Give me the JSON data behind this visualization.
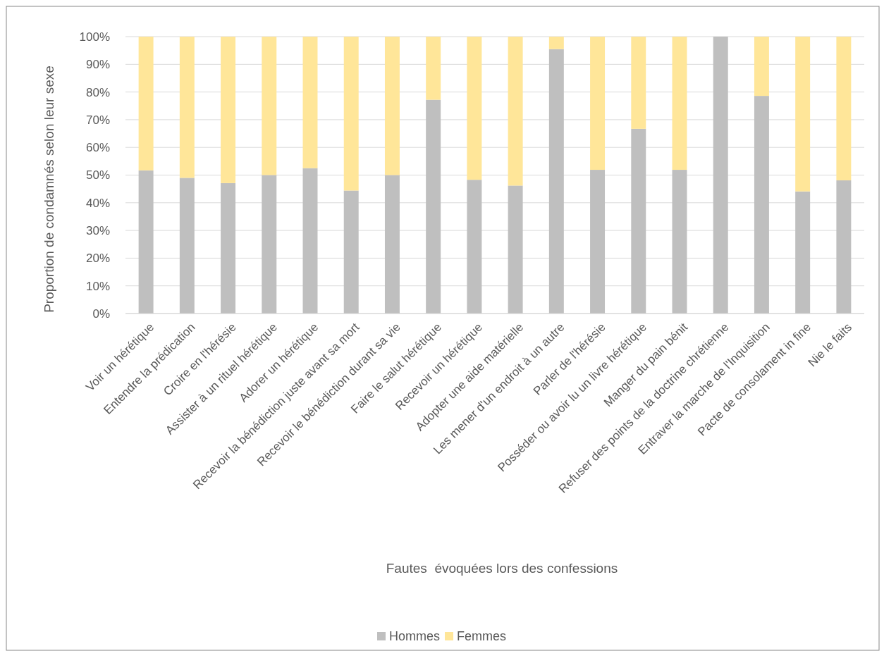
{
  "chart_data": {
    "type": "bar",
    "stacked": true,
    "xlabel": "Fautes  évoquées lors des confessions",
    "ylabel": "Proportion de condamnés selon leur sexe",
    "categories": [
      "Voir un hérétique",
      "Entendre la prédication",
      "Croire en l'hérésie",
      "Assister à un rituel hérétique",
      "Adorer un hérétique",
      "Recevoir la bénédiction juste avant sa mort",
      "Recevoir le bénédiction durant sa vie",
      "Faire le salut hérétique",
      "Recevoir un hérétique",
      "Adopter une aide matérielle",
      "Les mener d'un endroit à un autre",
      "Parler de l'hérésie",
      "Posséder ou avoir lu un livre hérétique",
      "Manger du pain bénit",
      "Refuser des points de la doctrine chrétienne",
      "Entraver la marche de l'Inquisition",
      "Pacte de consolament in fine",
      "Nie le faits"
    ],
    "series": [
      {
        "name": "Hommes",
        "color": "#bfbfbf",
        "values": [
          51.7,
          49,
          47.1,
          50,
          52.5,
          44.4,
          50,
          77.2,
          48.3,
          46.2,
          95.5,
          51.9,
          66.7,
          51.9,
          100,
          78.6,
          44.1,
          48.1
        ]
      },
      {
        "name": "Femmes",
        "color": "#ffe699",
        "values": [
          48.3,
          51,
          52.9,
          50,
          47.5,
          55.6,
          50,
          22.8,
          51.7,
          53.8,
          4.5,
          48.1,
          33.3,
          48.1,
          0,
          21.4,
          55.9,
          51.9
        ]
      }
    ],
    "ylim": [
      0,
      100
    ],
    "yticks": [
      {
        "value": 0,
        "label": "0%"
      },
      {
        "value": 10,
        "label": "10%"
      },
      {
        "value": 20,
        "label": "20%"
      },
      {
        "value": 30,
        "label": "30%"
      },
      {
        "value": 40,
        "label": "40%"
      },
      {
        "value": 50,
        "label": "50%"
      },
      {
        "value": 60,
        "label": "60%"
      },
      {
        "value": 70,
        "label": "70%"
      },
      {
        "value": 80,
        "label": "80%"
      },
      {
        "value": 90,
        "label": "90%"
      },
      {
        "value": 100,
        "label": "100%"
      }
    ],
    "grid": "y",
    "legend": "bottom"
  }
}
